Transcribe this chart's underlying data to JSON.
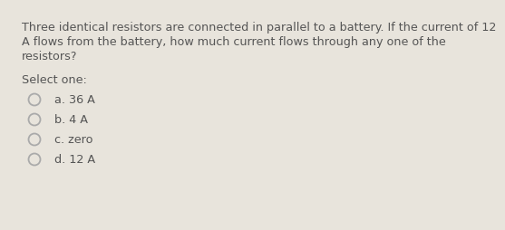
{
  "background_color": "#e8e4dc",
  "question_text_lines": [
    "Three identical resistors are connected in parallel to a battery. If the current of 12",
    "A flows from the battery, how much current flows through any one of the",
    "resistors?"
  ],
  "select_label": "Select one:",
  "options": [
    "a. 36 A",
    "b. 4 A",
    "c. zero",
    "d. 12 A"
  ],
  "text_color": "#555555",
  "circle_edge_color": "#aaaaaa",
  "question_fontsize": 9.2,
  "select_fontsize": 9.2,
  "option_fontsize": 9.2
}
